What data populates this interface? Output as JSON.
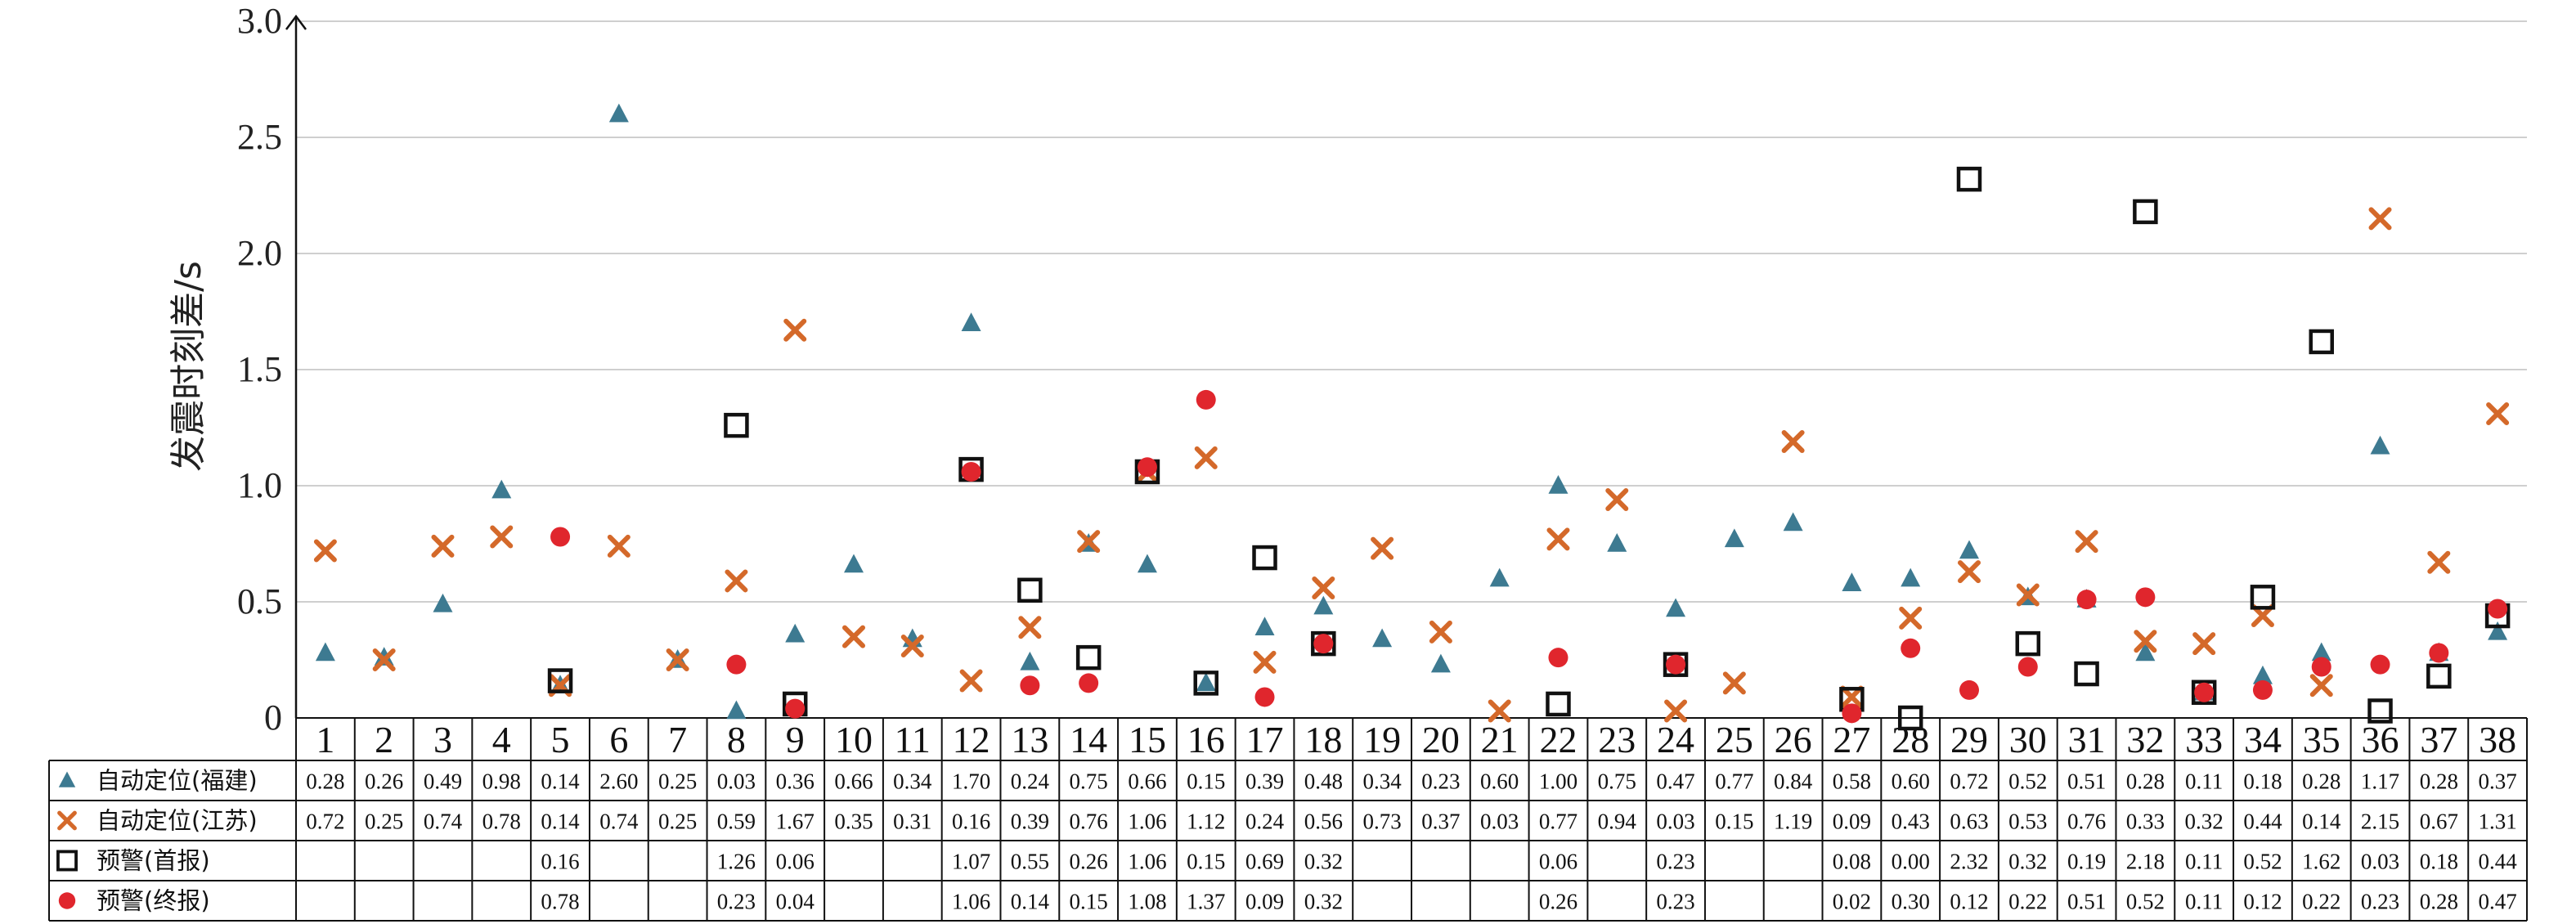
{
  "chart_data": {
    "type": "scatter",
    "title": "",
    "xlabel": "",
    "ylabel": "发震时刻差/s",
    "ylim": [
      0,
      3.0
    ],
    "yticks": [
      "0",
      "0.5",
      "1.0",
      "1.5",
      "2.0",
      "2.5",
      "3.0"
    ],
    "grid": true,
    "legend": "table-left",
    "categories": [
      "1",
      "2",
      "3",
      "4",
      "5",
      "6",
      "7",
      "8",
      "9",
      "10",
      "11",
      "12",
      "13",
      "14",
      "15",
      "16",
      "17",
      "18",
      "19",
      "20",
      "21",
      "22",
      "23",
      "24",
      "25",
      "26",
      "27",
      "28",
      "29",
      "30",
      "31",
      "32",
      "33",
      "34",
      "35",
      "36",
      "37",
      "38"
    ],
    "series": [
      {
        "name": "自动定位(福建)",
        "marker": "triangle",
        "color": "#3d7a91",
        "values": [
          0.28,
          0.26,
          0.49,
          0.98,
          0.14,
          2.6,
          0.25,
          0.03,
          0.36,
          0.66,
          0.34,
          1.7,
          0.24,
          0.75,
          0.66,
          0.15,
          0.39,
          0.48,
          0.34,
          0.23,
          0.6,
          1.0,
          0.75,
          0.47,
          0.77,
          0.84,
          0.58,
          0.6,
          0.72,
          0.52,
          0.51,
          0.28,
          0.11,
          0.18,
          0.28,
          1.17,
          0.28,
          0.37
        ],
        "labels": [
          "0.28",
          "0.26",
          "0.49",
          "0.98",
          "0.14",
          "2.60",
          "0.25",
          "0.03",
          "0.36",
          "0.66",
          "0.34",
          "1.70",
          "0.24",
          "0.75",
          "0.66",
          "0.15",
          "0.39",
          "0.48",
          "0.34",
          "0.23",
          "0.60",
          "1.00",
          "0.75",
          "0.47",
          "0.77",
          "0.84",
          "0.58",
          "0.60",
          "0.72",
          "0.52",
          "0.51",
          "0.28",
          "0.11",
          "0.18",
          "0.28",
          "1.17",
          "0.28",
          "0.37"
        ]
      },
      {
        "name": "自动定位(江苏)",
        "marker": "x",
        "color": "#d4692a",
        "values": [
          0.72,
          0.25,
          0.74,
          0.78,
          0.14,
          0.74,
          0.25,
          0.59,
          1.67,
          0.35,
          0.31,
          0.16,
          0.39,
          0.76,
          1.06,
          1.12,
          0.24,
          0.56,
          0.73,
          0.37,
          0.03,
          0.77,
          0.94,
          0.03,
          0.15,
          1.19,
          0.09,
          0.43,
          0.63,
          0.53,
          0.76,
          0.33,
          0.32,
          0.44,
          0.14,
          2.15,
          0.67,
          1.31
        ],
        "labels": [
          "0.72",
          "0.25",
          "0.74",
          "0.78",
          "0.14",
          "0.74",
          "0.25",
          "0.59",
          "1.67",
          "0.35",
          "0.31",
          "0.16",
          "0.39",
          "0.76",
          "1.06",
          "1.12",
          "0.24",
          "0.56",
          "0.73",
          "0.37",
          "0.03",
          "0.77",
          "0.94",
          "0.03",
          "0.15",
          "1.19",
          "0.09",
          "0.43",
          "0.63",
          "0.53",
          "0.76",
          "0.33",
          "0.32",
          "0.44",
          "0.14",
          "2.15",
          "0.67",
          "1.31"
        ]
      },
      {
        "name": "预警(首报)",
        "marker": "square",
        "color": "#111111",
        "values": [
          null,
          null,
          null,
          null,
          0.16,
          null,
          null,
          1.26,
          0.06,
          null,
          null,
          1.07,
          0.55,
          0.26,
          1.06,
          0.15,
          0.69,
          0.32,
          null,
          null,
          null,
          0.06,
          null,
          0.23,
          null,
          null,
          0.08,
          0.0,
          2.32,
          0.32,
          0.19,
          2.18,
          0.11,
          0.52,
          1.62,
          0.03,
          0.18,
          0.44
        ],
        "labels": [
          "",
          "",
          "",
          "",
          "0.16",
          "",
          "",
          "1.26",
          "0.06",
          "",
          "",
          "1.07",
          "0.55",
          "0.26",
          "1.06",
          "0.15",
          "0.69",
          "0.32",
          "",
          "",
          "",
          "0.06",
          "",
          "0.23",
          "",
          "",
          "0.08",
          "0.00",
          "2.32",
          "0.32",
          "0.19",
          "2.18",
          "0.11",
          "0.52",
          "1.62",
          "0.03",
          "0.18",
          "0.44"
        ]
      },
      {
        "name": "预警(终报)",
        "marker": "circle",
        "color": "#e0262d",
        "values": [
          null,
          null,
          null,
          null,
          0.78,
          null,
          null,
          0.23,
          0.04,
          null,
          null,
          1.06,
          0.14,
          0.15,
          1.08,
          1.37,
          0.09,
          0.32,
          null,
          null,
          null,
          0.26,
          null,
          0.23,
          null,
          null,
          0.02,
          0.3,
          0.12,
          0.22,
          0.51,
          0.52,
          0.11,
          0.12,
          0.22,
          0.23,
          0.28,
          0.47
        ],
        "labels": [
          "",
          "",
          "",
          "",
          "0.78",
          "",
          "",
          "0.23",
          "0.04",
          "",
          "",
          "1.06",
          "0.14",
          "0.15",
          "1.08",
          "1.37",
          "0.09",
          "0.32",
          "",
          "",
          "",
          "0.26",
          "",
          "0.23",
          "",
          "",
          "0.02",
          "0.30",
          "0.12",
          "0.22",
          "0.51",
          "0.52",
          "0.11",
          "0.12",
          "0.22",
          "0.23",
          "0.28",
          "0.47"
        ]
      }
    ]
  }
}
